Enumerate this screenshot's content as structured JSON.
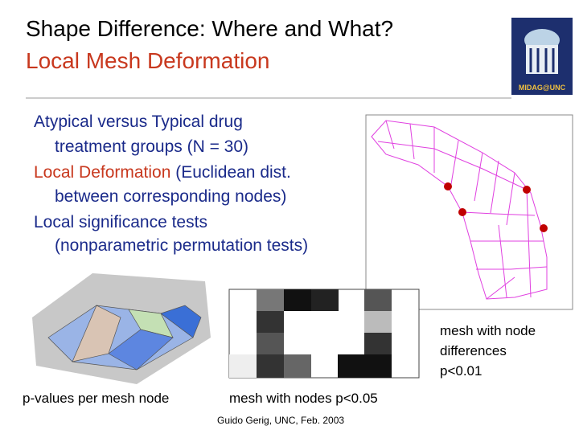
{
  "title": {
    "line1": "Shape Difference: Where and What?",
    "line2": "Local Mesh Deformation"
  },
  "logo": {
    "label": "MIDAG@UNC"
  },
  "bullets": [
    {
      "main": "Atypical versus Typical drug",
      "sub": "treatment groups (N = 30)"
    },
    {
      "highlight": "Local Deformation",
      "main": " (Euclidean dist.",
      "sub": "between corresponding nodes)"
    },
    {
      "main": "Local significance tests",
      "sub": "(nonparametric permutation tests)"
    }
  ],
  "captions": {
    "surface": "p-values per mesh node",
    "grid": "mesh with nodes p<0.05",
    "mesh": [
      "mesh with node",
      "differences",
      "p<0.01"
    ]
  },
  "footer": "Guido Gerig, UNC, Feb. 2003"
}
